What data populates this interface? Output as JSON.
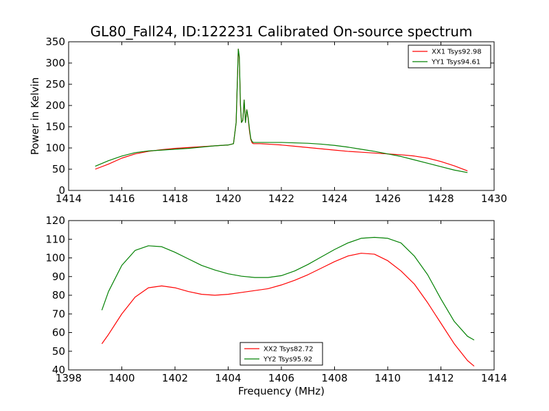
{
  "chart_data": [
    {
      "type": "line",
      "title": "GL80_Fall24, ID:122231 Calibrated On-source spectrum",
      "xlabel": "",
      "ylabel": "Power in Kelvin",
      "xlim": [
        1414,
        1430
      ],
      "ylim": [
        0,
        350
      ],
      "xticks": [
        1414,
        1416,
        1418,
        1420,
        1422,
        1424,
        1426,
        1428,
        1430
      ],
      "yticks": [
        0,
        50,
        100,
        150,
        200,
        250,
        300,
        350
      ],
      "grid": false,
      "legend": "top-right",
      "series": [
        {
          "name": "XX1 Tsys92.98",
          "color": "#ff0000",
          "x": [
            1415.0,
            1415.5,
            1416.0,
            1416.5,
            1417.0,
            1417.5,
            1418.0,
            1418.5,
            1419.0,
            1419.5,
            1420.0,
            1420.2,
            1420.3,
            1420.38,
            1420.42,
            1420.46,
            1420.5,
            1420.55,
            1420.6,
            1420.65,
            1420.7,
            1420.75,
            1420.8,
            1420.85,
            1420.9,
            1420.95,
            1421.0,
            1421.2,
            1421.5,
            1422.0,
            1422.5,
            1423.0,
            1423.5,
            1424.0,
            1424.5,
            1425.0,
            1425.5,
            1426.0,
            1426.5,
            1427.0,
            1427.5,
            1428.0,
            1428.5,
            1429.0
          ],
          "y": [
            50,
            62,
            76,
            86,
            92,
            96,
            99,
            101,
            103,
            105,
            107,
            110,
            160,
            333,
            310,
            200,
            160,
            165,
            213,
            160,
            190,
            170,
            140,
            120,
            112,
            110,
            110,
            110,
            109,
            107,
            104,
            101,
            98,
            95,
            92,
            90,
            88,
            86,
            84,
            81,
            76,
            68,
            58,
            46
          ]
        },
        {
          "name": "YY1 Tsys94.61",
          "color": "#008000",
          "x": [
            1415.0,
            1415.5,
            1416.0,
            1416.5,
            1417.0,
            1417.5,
            1418.0,
            1418.5,
            1419.0,
            1419.5,
            1420.0,
            1420.2,
            1420.3,
            1420.38,
            1420.42,
            1420.46,
            1420.5,
            1420.55,
            1420.6,
            1420.65,
            1420.7,
            1420.75,
            1420.8,
            1420.85,
            1420.9,
            1420.95,
            1421.0,
            1421.2,
            1421.5,
            1422.0,
            1422.5,
            1423.0,
            1423.5,
            1424.0,
            1424.5,
            1425.0,
            1425.5,
            1426.0,
            1426.5,
            1427.0,
            1427.5,
            1428.0,
            1428.5,
            1429.0
          ],
          "y": [
            57,
            70,
            81,
            89,
            93,
            95,
            97,
            99,
            102,
            105,
            107,
            110,
            160,
            333,
            315,
            205,
            160,
            165,
            213,
            160,
            190,
            172,
            145,
            122,
            115,
            113,
            113,
            113,
            113,
            113,
            112,
            111,
            109,
            106,
            102,
            97,
            92,
            86,
            80,
            72,
            64,
            56,
            48,
            42
          ]
        }
      ]
    },
    {
      "type": "line",
      "title": "",
      "xlabel": "Frequency (MHz)",
      "ylabel": "",
      "xlim": [
        1398,
        1414
      ],
      "ylim": [
        40,
        120
      ],
      "xticks": [
        1398,
        1400,
        1402,
        1404,
        1406,
        1408,
        1410,
        1412,
        1414
      ],
      "yticks": [
        40,
        50,
        60,
        70,
        80,
        90,
        100,
        110,
        120
      ],
      "grid": false,
      "legend": "bottom-center",
      "series": [
        {
          "name": "XX2 Tsys82.72",
          "color": "#ff0000",
          "x": [
            1399.25,
            1399.5,
            1400.0,
            1400.5,
            1401.0,
            1401.5,
            1402.0,
            1402.5,
            1403.0,
            1403.5,
            1404.0,
            1404.5,
            1405.0,
            1405.5,
            1406.0,
            1406.5,
            1407.0,
            1407.5,
            1408.0,
            1408.5,
            1409.0,
            1409.5,
            1410.0,
            1410.5,
            1411.0,
            1411.5,
            1412.0,
            1412.5,
            1413.0,
            1413.25
          ],
          "y": [
            54,
            59,
            70,
            79,
            84,
            85,
            84,
            82,
            80.5,
            80,
            80.5,
            81.5,
            82.5,
            83.5,
            85.5,
            88,
            91,
            94.5,
            98,
            101,
            102.5,
            102,
            98.5,
            93,
            86,
            76,
            65,
            54,
            45,
            42
          ]
        },
        {
          "name": "YY2 Tsys95.92",
          "color": "#008000",
          "x": [
            1399.25,
            1399.5,
            1400.0,
            1400.5,
            1401.0,
            1401.5,
            1402.0,
            1402.5,
            1403.0,
            1403.5,
            1404.0,
            1404.5,
            1405.0,
            1405.5,
            1406.0,
            1406.5,
            1407.0,
            1407.5,
            1408.0,
            1408.5,
            1409.0,
            1409.5,
            1410.0,
            1410.5,
            1411.0,
            1411.5,
            1412.0,
            1412.5,
            1413.0,
            1413.25
          ],
          "y": [
            72,
            82,
            96,
            104,
            106.5,
            106,
            103,
            99.5,
            96,
            93.5,
            91.5,
            90.2,
            89.5,
            89.5,
            90.5,
            93,
            96.5,
            100.5,
            104.5,
            108,
            110.5,
            111,
            110.5,
            108,
            101,
            91,
            78,
            66,
            58,
            56
          ]
        }
      ]
    }
  ]
}
